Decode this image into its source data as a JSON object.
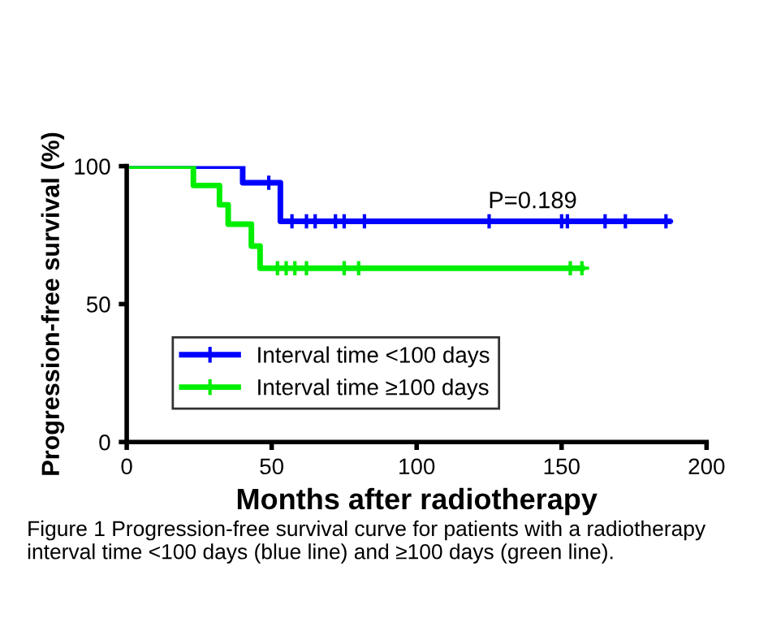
{
  "chart_data": {
    "type": "step",
    "xlabel": "Months after radiotherapy",
    "ylabel": "Progression-free survival (%)",
    "series": [
      {
        "name": "Interval time <100 days",
        "color": "#0000ff",
        "x": [
          0,
          40,
          53,
          187
        ],
        "values": [
          100,
          94,
          80,
          80
        ]
      },
      {
        "name": "Interval time ≥100 days",
        "color": "#00ee00",
        "x": [
          0,
          23,
          32,
          35,
          43,
          46,
          157
        ],
        "values": [
          100,
          93,
          86,
          79,
          71,
          63,
          63
        ]
      },
      {
        "type": "scatter",
        "marker": "cross",
        "color": "#0000ff",
        "x": [
          49,
          57,
          62,
          65,
          72,
          75,
          82,
          125,
          150,
          152,
          165,
          172,
          186
        ],
        "values": [
          94,
          80,
          80,
          80,
          80,
          80,
          80,
          80,
          80,
          80,
          80,
          80,
          80
        ]
      },
      {
        "type": "scatter",
        "marker": "cross",
        "color": "#00ee00",
        "x": [
          52,
          55,
          58,
          62,
          75,
          80,
          153,
          157
        ],
        "values": [
          63,
          63,
          63,
          63,
          63,
          63,
          63,
          63
        ]
      }
    ],
    "xlim": [
      0,
      200
    ],
    "xticks": [
      0,
      50,
      100,
      150,
      200
    ],
    "ylim": [
      0,
      100
    ],
    "yticks": [
      0,
      50,
      100
    ],
    "legend": "bottom left",
    "grid": false,
    "annotations": [
      "P=0.189",
      "Figure 1 Progression-free survival curve for patients with a radiotherapy interval time <100 days (blue line) and ≥100 days (green line)."
    ]
  }
}
